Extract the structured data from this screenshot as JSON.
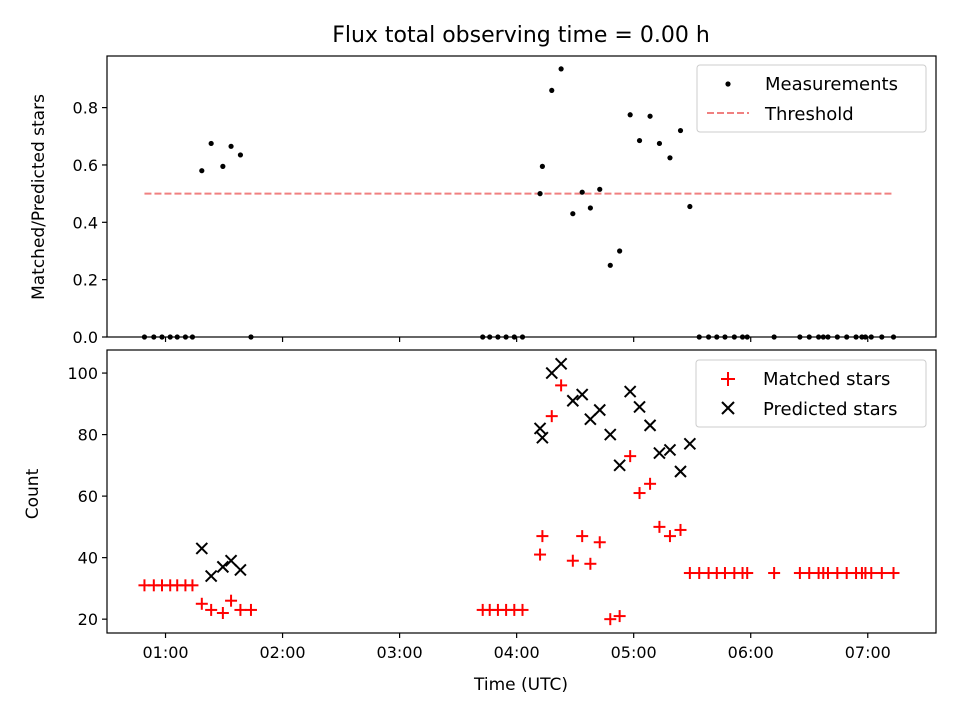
{
  "chart_data": {
    "title": "Flux total observing time = 0.00 h",
    "colors": {
      "measurements": "#000000",
      "threshold": "#f08080",
      "matched": "#ff0000",
      "predicted": "#000000"
    },
    "panels": [
      {
        "type": "scatter",
        "ylabel": "Matched/Predicted stars",
        "xlabel": "",
        "xlim": [
          0.5,
          7.583
        ],
        "ylim": [
          0,
          0.98
        ],
        "xticks": [
          "01:00",
          "02:00",
          "03:00",
          "04:00",
          "05:00",
          "06:00",
          "07:00"
        ],
        "xtick_values": [
          1,
          2,
          3,
          4,
          5,
          6,
          7
        ],
        "yticks": [
          "0.0",
          "0.2",
          "0.4",
          "0.6",
          "0.8"
        ],
        "ytick_values": [
          0.0,
          0.2,
          0.4,
          0.6,
          0.8
        ],
        "legend": {
          "position": "top-right",
          "measurements": "Measurements",
          "threshold": "Threshold"
        },
        "measurements": {
          "x": [
            0.82,
            0.9,
            0.97,
            1.04,
            1.1,
            1.17,
            1.23,
            1.31,
            1.39,
            1.49,
            1.56,
            1.64,
            1.73,
            3.71,
            3.77,
            3.84,
            3.91,
            3.98,
            4.05,
            4.2,
            4.22,
            4.3,
            4.38,
            4.48,
            4.56,
            4.63,
            4.71,
            4.8,
            4.88,
            4.97,
            5.05,
            5.14,
            5.22,
            5.31,
            5.4,
            5.48,
            5.56,
            5.64,
            5.71,
            5.78,
            5.86,
            5.93,
            5.97,
            6.2,
            6.42,
            6.5,
            6.58,
            6.62,
            6.66,
            6.74,
            6.82,
            6.9,
            6.95,
            6.98,
            7.03,
            7.12,
            7.22
          ],
          "y": [
            0,
            0,
            0,
            0,
            0,
            0,
            0,
            0.58,
            0.675,
            0.595,
            0.665,
            0.635,
            0,
            0,
            0,
            0,
            0,
            0,
            0,
            0.5,
            0.595,
            0.86,
            0.935,
            0.43,
            0.505,
            0.45,
            0.515,
            0.25,
            0.3,
            0.775,
            0.685,
            0.77,
            0.675,
            0.625,
            0.72,
            0.455,
            0,
            0,
            0,
            0,
            0,
            0,
            0,
            0,
            0,
            0,
            0,
            0,
            0,
            0,
            0,
            0,
            0,
            0,
            0,
            0,
            0
          ]
        },
        "threshold": {
          "x": [
            0.82,
            7.22
          ],
          "y": [
            0.5,
            0.5
          ]
        }
      },
      {
        "type": "scatter",
        "ylabel": "Count",
        "xlabel": "Time (UTC)",
        "xlim": [
          0.5,
          7.583
        ],
        "ylim": [
          15.5,
          107.5
        ],
        "xticks": [
          "01:00",
          "02:00",
          "03:00",
          "04:00",
          "05:00",
          "06:00",
          "07:00"
        ],
        "xtick_values": [
          1,
          2,
          3,
          4,
          5,
          6,
          7
        ],
        "yticks": [
          "20",
          "40",
          "60",
          "80",
          "100"
        ],
        "ytick_values": [
          20,
          40,
          60,
          80,
          100
        ],
        "legend": {
          "position": "top-right",
          "matched": "Matched stars",
          "predicted": "Predicted stars"
        },
        "matched": {
          "x": [
            0.82,
            0.9,
            0.97,
            1.04,
            1.1,
            1.17,
            1.23,
            1.31,
            1.39,
            1.49,
            1.56,
            1.64,
            1.73,
            3.71,
            3.77,
            3.84,
            3.91,
            3.98,
            4.05,
            4.2,
            4.22,
            4.3,
            4.38,
            4.48,
            4.56,
            4.63,
            4.71,
            4.8,
            4.88,
            4.97,
            5.05,
            5.14,
            5.22,
            5.31,
            5.4,
            5.48,
            5.56,
            5.64,
            5.71,
            5.78,
            5.86,
            5.93,
            5.97,
            6.2,
            6.42,
            6.5,
            6.58,
            6.62,
            6.66,
            6.74,
            6.82,
            6.9,
            6.95,
            6.98,
            7.03,
            7.12,
            7.22
          ],
          "y": [
            31,
            31,
            31,
            31,
            31,
            31,
            31,
            25,
            23,
            22,
            26,
            23,
            23,
            23,
            23,
            23,
            23,
            23,
            23,
            41,
            47,
            86,
            96,
            39,
            47,
            38,
            45,
            20,
            21,
            73,
            61,
            64,
            50,
            47,
            49,
            35,
            35,
            35,
            35,
            35,
            35,
            35,
            35,
            35,
            35,
            35,
            35,
            35,
            35,
            35,
            35,
            35,
            35,
            35,
            35,
            35,
            35
          ]
        },
        "predicted": {
          "x": [
            1.31,
            1.39,
            1.49,
            1.56,
            1.64,
            4.2,
            4.22,
            4.3,
            4.38,
            4.48,
            4.56,
            4.63,
            4.71,
            4.8,
            4.88,
            4.97,
            5.05,
            5.14,
            5.22,
            5.31,
            5.4,
            5.48
          ],
          "y": [
            43,
            34,
            37,
            39,
            36,
            82,
            79,
            100,
            103,
            91,
            93,
            85,
            88,
            80,
            70,
            94,
            89,
            83,
            74,
            75,
            68,
            77
          ]
        }
      }
    ]
  }
}
